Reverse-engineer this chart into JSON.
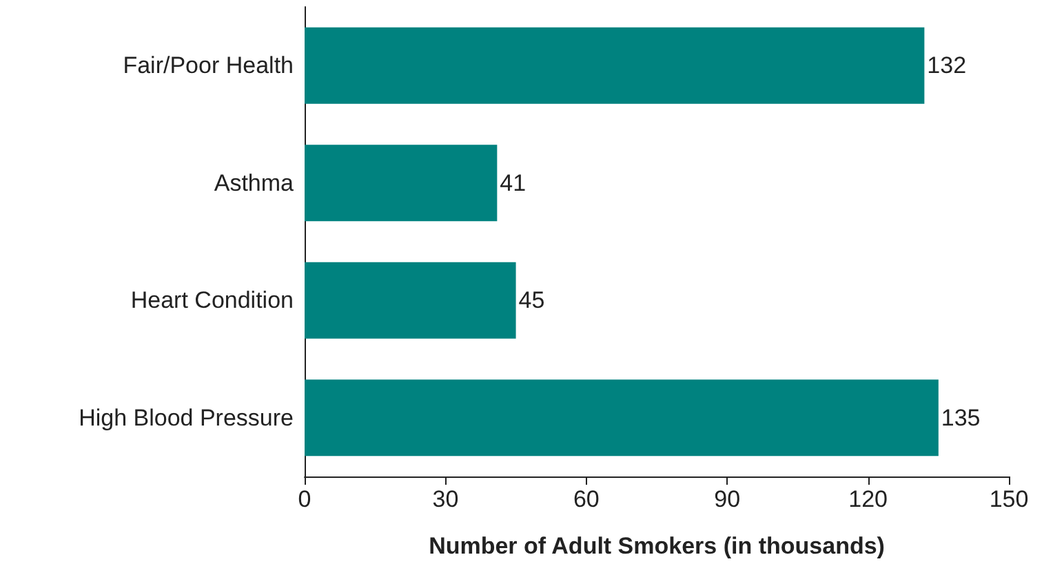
{
  "chart_data": {
    "type": "bar",
    "orientation": "horizontal",
    "xlabel": "Number of Adult Smokers (in thousands)",
    "categories": [
      "Fair/Poor Health",
      "Asthma",
      "Heart Condition",
      "High Blood Pressure"
    ],
    "values": [
      132,
      41,
      45,
      135
    ],
    "color": "#00827f",
    "xlim": [
      0,
      150
    ],
    "xticks": [
      0,
      30,
      60,
      90,
      120,
      150
    ],
    "data_labels": true
  }
}
